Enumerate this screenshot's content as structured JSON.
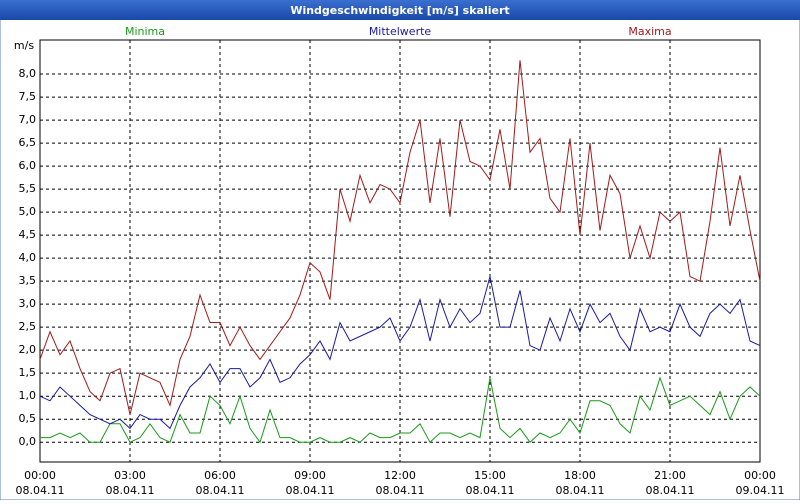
{
  "chart_data": {
    "type": "line",
    "title": "Windgeschwindigkeit [m/s] skaliert",
    "y_label": "m/s",
    "x": [
      0,
      20,
      40,
      60,
      80,
      100,
      120,
      140,
      160,
      180,
      200,
      220,
      240,
      260,
      280,
      300,
      320,
      340,
      360,
      380,
      400,
      420,
      440,
      460,
      480,
      500,
      520,
      540,
      560,
      580,
      600,
      620,
      640,
      660,
      680,
      700,
      720,
      740,
      760,
      780,
      800,
      820,
      840,
      860,
      880,
      900,
      920,
      940,
      960,
      980,
      1000,
      1020,
      1040,
      1060,
      1080,
      1100,
      1120,
      1140,
      1160,
      1180,
      1200,
      1220,
      1240,
      1260,
      1280,
      1300,
      1320,
      1340,
      1360,
      1380,
      1400,
      1420,
      1440
    ],
    "series": [
      {
        "name": "Minima",
        "color": "#1a9a1a",
        "legend_pos": "left",
        "values": [
          0.1,
          0.1,
          0.2,
          0.1,
          0.2,
          0.0,
          0.0,
          0.4,
          0.4,
          0.0,
          0.1,
          0.4,
          0.1,
          0.0,
          0.6,
          0.2,
          0.2,
          1.0,
          0.8,
          0.4,
          1.0,
          0.3,
          0.0,
          0.7,
          0.1,
          0.1,
          0.0,
          0.0,
          0.1,
          0.0,
          0.0,
          0.1,
          0.0,
          0.2,
          0.1,
          0.1,
          0.2,
          0.2,
          0.4,
          0.0,
          0.2,
          0.2,
          0.1,
          0.2,
          0.1,
          1.4,
          0.3,
          0.1,
          0.3,
          0.0,
          0.2,
          0.1,
          0.2,
          0.5,
          0.2,
          0.9,
          0.9,
          0.8,
          0.4,
          0.2,
          1.0,
          0.7,
          1.4,
          0.8,
          0.9,
          1.0,
          0.8,
          0.6,
          1.1,
          0.5,
          1.0,
          1.2,
          1.0
        ]
      },
      {
        "name": "Mittelwerte",
        "color": "#1a1aa0",
        "legend_pos": "center",
        "values": [
          1.0,
          0.9,
          1.2,
          1.0,
          0.8,
          0.6,
          0.5,
          0.4,
          0.5,
          0.3,
          0.6,
          0.5,
          0.5,
          0.3,
          0.8,
          1.2,
          1.4,
          1.7,
          1.3,
          1.6,
          1.6,
          1.2,
          1.4,
          1.8,
          1.3,
          1.4,
          1.7,
          1.9,
          2.2,
          1.8,
          2.6,
          2.2,
          2.3,
          2.4,
          2.5,
          2.7,
          2.2,
          2.5,
          3.1,
          2.2,
          3.1,
          2.5,
          2.9,
          2.6,
          2.8,
          3.6,
          2.5,
          2.5,
          3.3,
          2.1,
          2.0,
          2.7,
          2.2,
          2.9,
          2.4,
          3.0,
          2.6,
          2.8,
          2.3,
          2.0,
          2.9,
          2.4,
          2.5,
          2.4,
          3.0,
          2.5,
          2.3,
          2.8,
          3.0,
          2.8,
          3.1,
          2.2,
          2.1
        ]
      },
      {
        "name": "Maxima",
        "color": "#a01a1a",
        "legend_pos": "right",
        "values": [
          1.8,
          2.4,
          1.9,
          2.2,
          1.6,
          1.1,
          0.9,
          1.5,
          1.6,
          0.6,
          1.5,
          1.4,
          1.3,
          0.8,
          1.8,
          2.3,
          3.2,
          2.6,
          2.6,
          2.1,
          2.5,
          2.1,
          1.8,
          2.1,
          2.4,
          2.7,
          3.2,
          3.9,
          3.7,
          3.1,
          5.5,
          4.8,
          5.8,
          5.2,
          5.6,
          5.5,
          5.2,
          6.3,
          7.0,
          5.2,
          6.6,
          4.9,
          7.0,
          6.1,
          6.0,
          5.7,
          6.8,
          5.5,
          8.3,
          6.3,
          6.6,
          5.3,
          5.0,
          6.6,
          4.5,
          6.5,
          4.6,
          5.8,
          5.4,
          4.0,
          4.7,
          4.0,
          5.0,
          4.8,
          5.0,
          3.6,
          3.5,
          4.8,
          6.4,
          4.7,
          5.8,
          4.6,
          3.5
        ]
      }
    ],
    "xlim": [
      0,
      1440
    ],
    "xticks": [
      {
        "value": 0,
        "label": "00:00"
      },
      {
        "value": 180,
        "label": "03:00"
      },
      {
        "value": 360,
        "label": "06:00"
      },
      {
        "value": 540,
        "label": "09:00"
      },
      {
        "value": 720,
        "label": "12:00"
      },
      {
        "value": 900,
        "label": "15:00"
      },
      {
        "value": 1080,
        "label": "18:00"
      },
      {
        "value": 1260,
        "label": "21:00"
      },
      {
        "value": 1440,
        "label": "00:00"
      }
    ],
    "xtick_dates": [
      "08.04.11",
      "08.04.11",
      "08.04.11",
      "08.04.11",
      "08.04.11",
      "08.04.11",
      "08.04.11",
      "08.04.11",
      "09.04.11"
    ],
    "ylim": [
      -0.43,
      8.74
    ],
    "yticks": [
      {
        "value": 0,
        "label": "0,0"
      },
      {
        "value": 0.5,
        "label": "0,5"
      },
      {
        "value": 1,
        "label": "1,0"
      },
      {
        "value": 1.5,
        "label": "1,5"
      },
      {
        "value": 2,
        "label": "2,0"
      },
      {
        "value": 2.5,
        "label": "2,5"
      },
      {
        "value": 3,
        "label": "3,0"
      },
      {
        "value": 3.5,
        "label": "3,5"
      },
      {
        "value": 4,
        "label": "4,0"
      },
      {
        "value": 4.5,
        "label": "4,5"
      },
      {
        "value": 5,
        "label": "5,0"
      },
      {
        "value": 5.5,
        "label": "5,5"
      },
      {
        "value": 6,
        "label": "6,0"
      },
      {
        "value": 6.5,
        "label": "6,5"
      },
      {
        "value": 7,
        "label": "7,0"
      },
      {
        "value": 7.5,
        "label": "7,5"
      },
      {
        "value": 8,
        "label": "8,0"
      }
    ],
    "grid": true
  }
}
